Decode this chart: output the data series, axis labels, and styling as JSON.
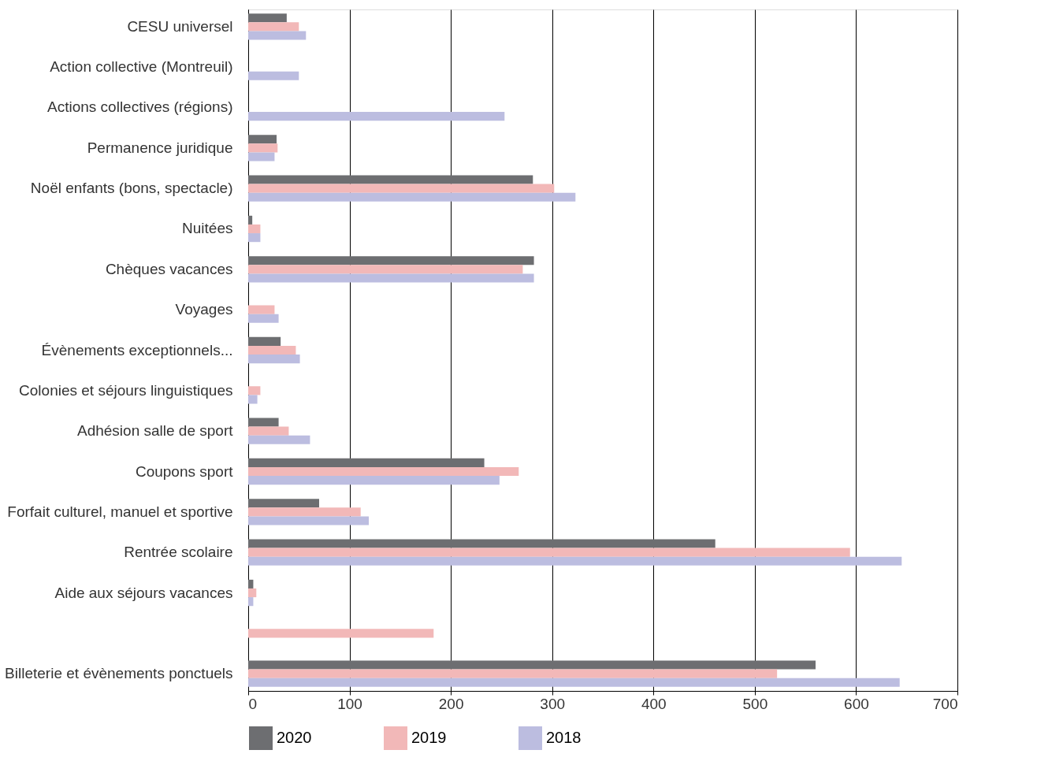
{
  "chart_data": {
    "type": "bar",
    "orientation": "horizontal",
    "categories": [
      "CESU universel",
      "Action collective (Montreuil)",
      "Actions collectives (régions)",
      "Permanence juridique",
      "Noël enfants (bons, spectacle)",
      "Nuitées",
      "Chèques vacances",
      "Voyages",
      "Évènements exceptionnels...",
      "Colonies et séjours linguistiques",
      "Adhésion salle de sport",
      "Coupons sport",
      "Forfait culturel, manuel et sportive",
      "Rentrée scolaire",
      "Aide aux séjours vacances",
      null,
      "Billeterie et évènements ponctuels"
    ],
    "series": [
      {
        "name": "2020",
        "color": "#6d6e71",
        "values": [
          38,
          null,
          null,
          28,
          281,
          4,
          282,
          null,
          32,
          null,
          30,
          233,
          70,
          461,
          5,
          null,
          560
        ]
      },
      {
        "name": "2019",
        "color": "#f2b8b8",
        "values": [
          50,
          null,
          null,
          29,
          302,
          12,
          271,
          26,
          47,
          12,
          40,
          267,
          111,
          594,
          8,
          183,
          522
        ]
      },
      {
        "name": "2018",
        "color": "#bcbde0",
        "values": [
          57,
          50,
          253,
          26,
          323,
          12,
          282,
          30,
          51,
          9,
          61,
          248,
          119,
          645,
          5,
          null,
          643
        ]
      }
    ],
    "xlim": [
      0,
      700
    ],
    "xticks": [
      0,
      100,
      200,
      300,
      400,
      500,
      600,
      700
    ],
    "grid": "x",
    "legend": "bottom"
  }
}
